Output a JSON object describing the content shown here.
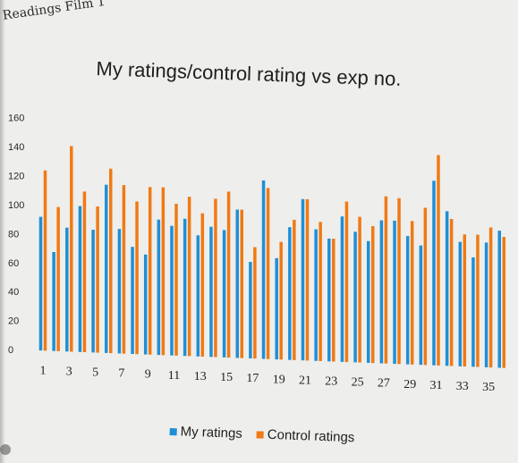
{
  "page": {
    "header": "Readings Film 1"
  },
  "chart_data": {
    "type": "bar",
    "title": "My ratings/control rating vs exp no.",
    "xlabel": "",
    "ylabel": "",
    "ylim": [
      0,
      160
    ],
    "yticks": [
      0,
      20,
      40,
      60,
      80,
      100,
      120,
      140,
      160
    ],
    "categories": [
      "1",
      "2",
      "3",
      "4",
      "5",
      "6",
      "7",
      "8",
      "9",
      "10",
      "11",
      "12",
      "13",
      "14",
      "15",
      "16",
      "17",
      "18",
      "19",
      "20",
      "21",
      "22",
      "23",
      "24",
      "25",
      "26",
      "27",
      "28",
      "29",
      "30",
      "31",
      "32",
      "33",
      "34",
      "35",
      "36"
    ],
    "xtick_labels": [
      "1",
      "3",
      "5",
      "7",
      "9",
      "11",
      "13",
      "15",
      "17",
      "19",
      "21",
      "23",
      "25",
      "27",
      "29",
      "31",
      "33",
      "35"
    ],
    "series": [
      {
        "name": "My ratings",
        "color": "#1f8fd6",
        "values": [
          92,
          68,
          85,
          100,
          84,
          115,
          85,
          73,
          68,
          92,
          88,
          93,
          82,
          88,
          86,
          100,
          65,
          120,
          68,
          89,
          108,
          88,
          82,
          97,
          87,
          81,
          95,
          95,
          85,
          79,
          122,
          102,
          82,
          72,
          82,
          90
        ]
      },
      {
        "name": "Control ratings",
        "color": "#f07a14",
        "values": [
          124,
          99,
          141,
          110,
          100,
          126,
          115,
          104,
          114,
          114,
          103,
          108,
          97,
          107,
          112,
          100,
          75,
          115,
          79,
          94,
          108,
          93,
          82,
          107,
          97,
          91,
          111,
          110,
          95,
          104,
          139,
          97,
          87,
          87,
          92,
          86
        ]
      }
    ],
    "legend": {
      "position": "bottom",
      "labels": [
        "My ratings",
        "Control ratings"
      ]
    }
  }
}
